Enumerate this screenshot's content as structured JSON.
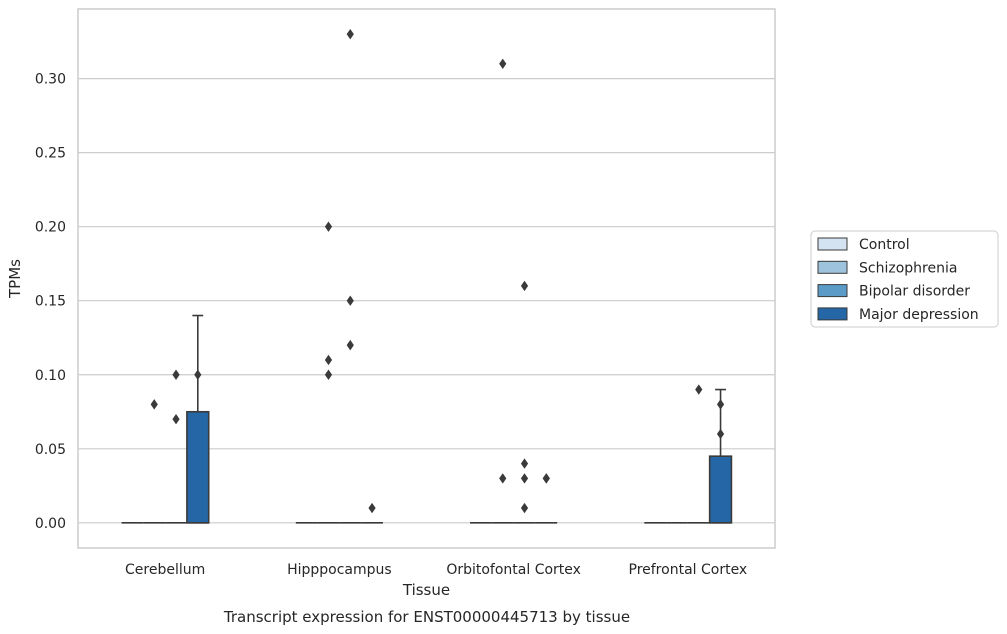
{
  "chart_data": {
    "type": "box",
    "xlabel": "Tissue",
    "ylabel": "TPMs",
    "caption": "Transcript expression for ENST00000445713 by tissue",
    "ylim": [
      -0.017,
      0.347
    ],
    "yticks": [
      0.0,
      0.05,
      0.1,
      0.15,
      0.2,
      0.25,
      0.3
    ],
    "ytick_labels": [
      "0.00",
      "0.05",
      "0.10",
      "0.15",
      "0.20",
      "0.25",
      "0.30"
    ],
    "grid": "horizontal",
    "legend_position": "right",
    "categories": [
      "Cerebellum",
      "Hipppocampus",
      "Orbitofontal Cortex",
      "Prefrontal Cortex"
    ],
    "series": [
      {
        "name": "Control",
        "color": "#d4e3f2",
        "boxes": [
          {
            "q1": 0,
            "median": 0,
            "q3": 0,
            "whislo": 0,
            "whishi": 0,
            "fliers": []
          },
          {
            "q1": 0,
            "median": 0,
            "q3": 0,
            "whislo": 0,
            "whishi": 0,
            "fliers": []
          },
          {
            "q1": 0,
            "median": 0,
            "q3": 0,
            "whislo": 0,
            "whishi": 0,
            "fliers": []
          },
          {
            "q1": 0,
            "median": 0,
            "q3": 0,
            "whislo": 0,
            "whishi": 0,
            "fliers": []
          }
        ]
      },
      {
        "name": "Schizophrenia",
        "color": "#9dc3dd",
        "boxes": [
          {
            "q1": 0,
            "median": 0,
            "q3": 0,
            "whislo": 0,
            "whishi": 0,
            "fliers": [
              0.08
            ]
          },
          {
            "q1": 0,
            "median": 0,
            "q3": 0,
            "whislo": 0,
            "whishi": 0,
            "fliers": [
              0.1,
              0.11,
              0.2
            ]
          },
          {
            "q1": 0,
            "median": 0,
            "q3": 0,
            "whislo": 0,
            "whishi": 0,
            "fliers": [
              0.03,
              0.31
            ]
          },
          {
            "q1": 0,
            "median": 0,
            "q3": 0,
            "whislo": 0,
            "whishi": 0,
            "fliers": []
          }
        ]
      },
      {
        "name": "Bipolar disorder",
        "color": "#5a9bc8",
        "boxes": [
          {
            "q1": 0,
            "median": 0,
            "q3": 0,
            "whislo": 0,
            "whishi": 0,
            "fliers": [
              0.07,
              0.1
            ]
          },
          {
            "q1": 0,
            "median": 0,
            "q3": 0,
            "whislo": 0,
            "whishi": 0,
            "fliers": [
              0.12,
              0.15,
              0.33
            ]
          },
          {
            "q1": 0,
            "median": 0,
            "q3": 0,
            "whislo": 0,
            "whishi": 0,
            "fliers": [
              0.01,
              0.03,
              0.04,
              0.16
            ]
          },
          {
            "q1": 0,
            "median": 0,
            "q3": 0,
            "whislo": 0,
            "whishi": 0,
            "fliers": [
              0.09
            ]
          }
        ]
      },
      {
        "name": "Major depression",
        "color": "#2566a6",
        "boxes": [
          {
            "q1": 0,
            "median": 0,
            "q3": 0.075,
            "whislo": 0,
            "whishi": 0.14,
            "fliers": [
              0.1
            ]
          },
          {
            "q1": 0,
            "median": 0,
            "q3": 0,
            "whislo": 0,
            "whishi": 0,
            "fliers": [
              0.01
            ]
          },
          {
            "q1": 0,
            "median": 0,
            "q3": 0,
            "whislo": 0,
            "whishi": 0,
            "fliers": [
              0.03,
              0.03
            ]
          },
          {
            "q1": 0,
            "median": 0,
            "q3": 0.045,
            "whislo": 0,
            "whishi": 0.09,
            "fliers": [
              0.06,
              0.08
            ]
          }
        ]
      }
    ]
  }
}
